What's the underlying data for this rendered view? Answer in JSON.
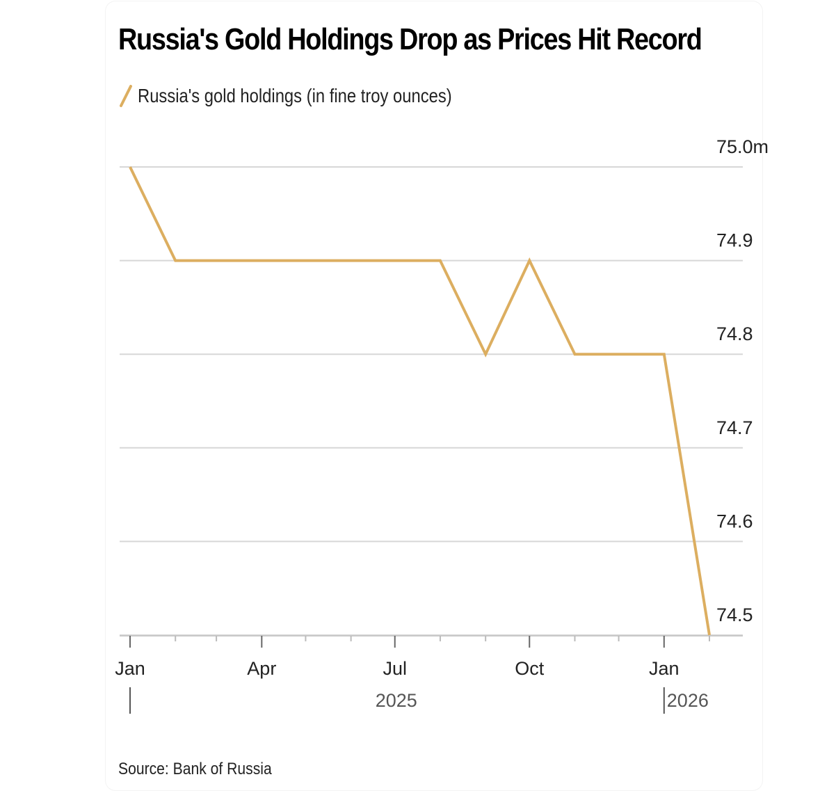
{
  "chart_data": {
    "type": "line",
    "title": "Russia's Gold Holdings Drop as Prices Hit Record",
    "series": [
      {
        "name": "Russia's gold holdings (in fine troy ounces)",
        "color": "#dcae60",
        "x": [
          "2025-01-01",
          "2025-02-01",
          "2025-03-01",
          "2025-04-01",
          "2025-05-01",
          "2025-06-01",
          "2025-07-01",
          "2025-08-01",
          "2025-09-01",
          "2025-10-01",
          "2025-11-01",
          "2025-12-01",
          "2026-01-01",
          "2026-02-01"
        ],
        "values": [
          75.0,
          74.9,
          74.9,
          74.9,
          74.9,
          74.9,
          74.9,
          74.9,
          74.8,
          74.9,
          74.8,
          74.8,
          74.8,
          74.5
        ]
      }
    ],
    "y_axis": {
      "ylim": [
        74.5,
        75.0
      ],
      "ticks": [
        75.0,
        74.9,
        74.8,
        74.7,
        74.6,
        74.5
      ],
      "tick_labels": [
        "75.0m",
        "74.9",
        "74.8",
        "74.7",
        "74.6",
        "74.5"
      ],
      "position": "right",
      "grid": true
    },
    "x_axis": {
      "xlim": [
        "2025-01-01",
        "2026-02-01"
      ],
      "tick_labels": [
        {
          "label": "Jan",
          "date": "2025-01-01"
        },
        {
          "label": "Apr",
          "date": "2025-04-01"
        },
        {
          "label": "Jul",
          "date": "2025-07-01"
        },
        {
          "label": "Oct",
          "date": "2025-10-01"
        },
        {
          "label": "Jan",
          "date": "2026-01-01"
        }
      ],
      "year_labels": [
        {
          "label": "2025",
          "date": "2025-07-01"
        },
        {
          "label": "2026",
          "date": "2026-01-01"
        }
      ]
    },
    "source": "Source: Bank of Russia"
  }
}
